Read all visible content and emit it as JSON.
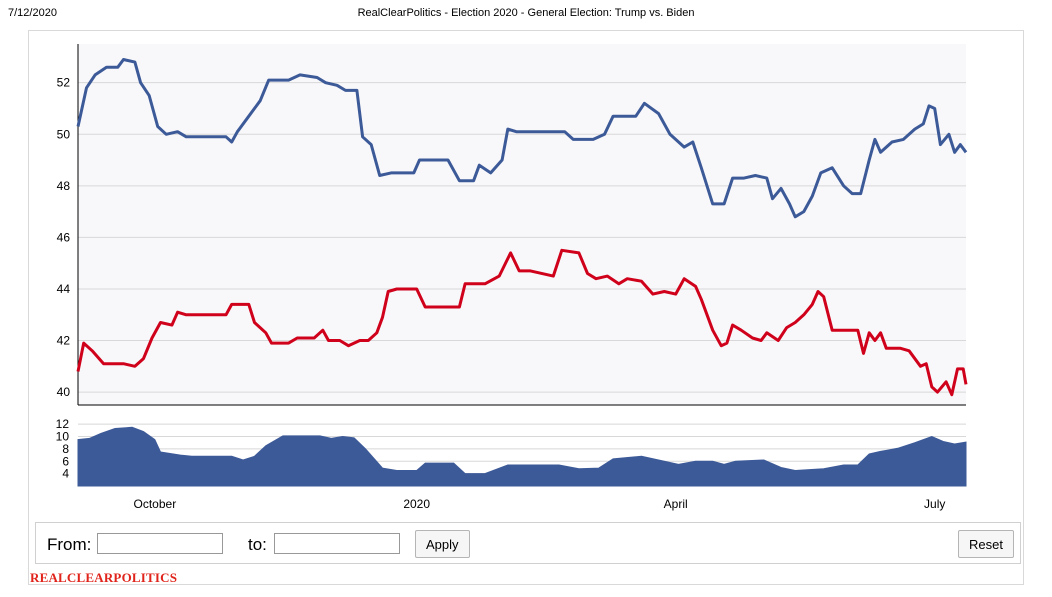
{
  "header": {
    "date": "7/12/2020",
    "title": "RealClearPolitics - Election 2020 - General Election: Trump vs. Biden"
  },
  "controls": {
    "from_label": "From:",
    "from_value": "",
    "to_label": "to:",
    "to_value": "",
    "apply_label": "Apply",
    "reset_label": "Reset"
  },
  "footer": {
    "brand": "REALCLEARPOLITICS"
  },
  "colors": {
    "biden": "#3d5a98",
    "trump": "#d0021b",
    "spread": "#3d5a98",
    "plot_bg": "#f8f8fb",
    "grid": "#d8d8d8"
  },
  "chart_data": [
    {
      "type": "line",
      "title": "",
      "xlabel": "",
      "ylabel": "",
      "ylim": [
        39.5,
        53.5
      ],
      "y_ticks": [
        40,
        42,
        44,
        46,
        48,
        50,
        52
      ],
      "x_ticks": [
        {
          "label": "October",
          "date": "2019-10-01"
        },
        {
          "label": "2020",
          "date": "2020-01-01"
        },
        {
          "label": "April",
          "date": "2020-04-01"
        },
        {
          "label": "July",
          "date": "2020-07-01"
        }
      ],
      "x_range": [
        "2019-09-04",
        "2020-07-12"
      ],
      "grid": true,
      "series": [
        {
          "name": "",
          "color": "#3d5a98",
          "points": [
            [
              "2019-09-04",
              50.3
            ],
            [
              "2019-09-07",
              51.8
            ],
            [
              "2019-09-10",
              52.3
            ],
            [
              "2019-09-14",
              52.6
            ],
            [
              "2019-09-18",
              52.6
            ],
            [
              "2019-09-20",
              52.9
            ],
            [
              "2019-09-24",
              52.8
            ],
            [
              "2019-09-26",
              52.0
            ],
            [
              "2019-09-29",
              51.5
            ],
            [
              "2019-10-02",
              50.3
            ],
            [
              "2019-10-05",
              50.0
            ],
            [
              "2019-10-09",
              50.1
            ],
            [
              "2019-10-12",
              49.9
            ],
            [
              "2019-10-20",
              49.9
            ],
            [
              "2019-10-26",
              49.9
            ],
            [
              "2019-10-28",
              49.7
            ],
            [
              "2019-10-30",
              50.1
            ],
            [
              "2019-11-03",
              50.7
            ],
            [
              "2019-11-07",
              51.3
            ],
            [
              "2019-11-10",
              52.1
            ],
            [
              "2019-11-17",
              52.1
            ],
            [
              "2019-11-21",
              52.3
            ],
            [
              "2019-11-27",
              52.2
            ],
            [
              "2019-11-30",
              52.0
            ],
            [
              "2019-12-04",
              51.9
            ],
            [
              "2019-12-07",
              51.7
            ],
            [
              "2019-12-11",
              51.7
            ],
            [
              "2019-12-13",
              49.9
            ],
            [
              "2019-12-16",
              49.6
            ],
            [
              "2019-12-19",
              48.4
            ],
            [
              "2019-12-23",
              48.5
            ],
            [
              "2019-12-31",
              48.5
            ],
            [
              "2020-01-02",
              49.0
            ],
            [
              "2020-01-12",
              49.0
            ],
            [
              "2020-01-16",
              48.2
            ],
            [
              "2020-01-21",
              48.2
            ],
            [
              "2020-01-23",
              48.8
            ],
            [
              "2020-01-27",
              48.5
            ],
            [
              "2020-01-31",
              49.0
            ],
            [
              "2020-02-02",
              50.2
            ],
            [
              "2020-02-05",
              50.1
            ],
            [
              "2020-02-15",
              50.1
            ],
            [
              "2020-02-22",
              50.1
            ],
            [
              "2020-02-25",
              49.8
            ],
            [
              "2020-02-29",
              49.8
            ],
            [
              "2020-03-03",
              49.8
            ],
            [
              "2020-03-07",
              50.0
            ],
            [
              "2020-03-10",
              50.7
            ],
            [
              "2020-03-18",
              50.7
            ],
            [
              "2020-03-21",
              51.2
            ],
            [
              "2020-03-26",
              50.8
            ],
            [
              "2020-03-30",
              50.0
            ],
            [
              "2020-04-04",
              49.5
            ],
            [
              "2020-04-07",
              49.7
            ],
            [
              "2020-04-10",
              48.7
            ],
            [
              "2020-04-14",
              47.3
            ],
            [
              "2020-04-18",
              47.3
            ],
            [
              "2020-04-21",
              48.3
            ],
            [
              "2020-04-25",
              48.3
            ],
            [
              "2020-04-29",
              48.4
            ],
            [
              "2020-05-03",
              48.3
            ],
            [
              "2020-05-05",
              47.5
            ],
            [
              "2020-05-08",
              47.9
            ],
            [
              "2020-05-11",
              47.3
            ],
            [
              "2020-05-13",
              46.8
            ],
            [
              "2020-05-16",
              47.0
            ],
            [
              "2020-05-19",
              47.6
            ],
            [
              "2020-05-22",
              48.5
            ],
            [
              "2020-05-26",
              48.7
            ],
            [
              "2020-05-30",
              48.0
            ],
            [
              "2020-06-02",
              47.7
            ],
            [
              "2020-06-05",
              47.7
            ],
            [
              "2020-06-08",
              49.0
            ],
            [
              "2020-06-10",
              49.8
            ],
            [
              "2020-06-12",
              49.3
            ],
            [
              "2020-06-16",
              49.7
            ],
            [
              "2020-06-20",
              49.8
            ],
            [
              "2020-06-24",
              50.2
            ],
            [
              "2020-06-27",
              50.4
            ],
            [
              "2020-06-29",
              51.1
            ],
            [
              "2020-07-01",
              51.0
            ],
            [
              "2020-07-03",
              49.6
            ],
            [
              "2020-07-06",
              50.0
            ],
            [
              "2020-07-08",
              49.3
            ],
            [
              "2020-07-10",
              49.6
            ],
            [
              "2020-07-12",
              49.3
            ]
          ]
        },
        {
          "name": "",
          "color": "#d0021b",
          "points": [
            [
              "2019-09-04",
              40.8
            ],
            [
              "2019-09-06",
              41.9
            ],
            [
              "2019-09-09",
              41.6
            ],
            [
              "2019-09-13",
              41.1
            ],
            [
              "2019-09-20",
              41.1
            ],
            [
              "2019-09-24",
              41.0
            ],
            [
              "2019-09-27",
              41.3
            ],
            [
              "2019-09-30",
              42.1
            ],
            [
              "2019-10-03",
              42.7
            ],
            [
              "2019-10-07",
              42.6
            ],
            [
              "2019-10-09",
              43.1
            ],
            [
              "2019-10-12",
              43.0
            ],
            [
              "2019-10-20",
              43.0
            ],
            [
              "2019-10-26",
              43.0
            ],
            [
              "2019-10-28",
              43.4
            ],
            [
              "2019-11-03",
              43.4
            ],
            [
              "2019-11-05",
              42.7
            ],
            [
              "2019-11-09",
              42.3
            ],
            [
              "2019-11-11",
              41.9
            ],
            [
              "2019-11-17",
              41.9
            ],
            [
              "2019-11-20",
              42.1
            ],
            [
              "2019-11-26",
              42.1
            ],
            [
              "2019-11-29",
              42.4
            ],
            [
              "2019-12-01",
              42.0
            ],
            [
              "2019-12-05",
              42.0
            ],
            [
              "2019-12-08",
              41.8
            ],
            [
              "2019-12-12",
              42.0
            ],
            [
              "2019-12-15",
              42.0
            ],
            [
              "2019-12-18",
              42.3
            ],
            [
              "2019-12-20",
              42.9
            ],
            [
              "2019-12-22",
              43.9
            ],
            [
              "2019-12-25",
              44.0
            ],
            [
              "2020-01-01",
              44.0
            ],
            [
              "2020-01-04",
              43.3
            ],
            [
              "2020-01-10",
              43.3
            ],
            [
              "2020-01-16",
              43.3
            ],
            [
              "2020-01-18",
              44.2
            ],
            [
              "2020-01-25",
              44.2
            ],
            [
              "2020-01-30",
              44.5
            ],
            [
              "2020-02-03",
              45.4
            ],
            [
              "2020-02-06",
              44.7
            ],
            [
              "2020-02-10",
              44.7
            ],
            [
              "2020-02-18",
              44.5
            ],
            [
              "2020-02-21",
              45.5
            ],
            [
              "2020-02-27",
              45.4
            ],
            [
              "2020-03-01",
              44.6
            ],
            [
              "2020-03-04",
              44.4
            ],
            [
              "2020-03-08",
              44.5
            ],
            [
              "2020-03-12",
              44.2
            ],
            [
              "2020-03-15",
              44.4
            ],
            [
              "2020-03-20",
              44.3
            ],
            [
              "2020-03-24",
              43.8
            ],
            [
              "2020-03-28",
              43.9
            ],
            [
              "2020-04-01",
              43.8
            ],
            [
              "2020-04-04",
              44.4
            ],
            [
              "2020-04-08",
              44.1
            ],
            [
              "2020-04-10",
              43.6
            ],
            [
              "2020-04-14",
              42.4
            ],
            [
              "2020-04-17",
              41.8
            ],
            [
              "2020-04-19",
              41.9
            ],
            [
              "2020-04-21",
              42.6
            ],
            [
              "2020-04-24",
              42.4
            ],
            [
              "2020-04-28",
              42.1
            ],
            [
              "2020-05-01",
              42.0
            ],
            [
              "2020-05-03",
              42.3
            ],
            [
              "2020-05-07",
              42.0
            ],
            [
              "2020-05-10",
              42.5
            ],
            [
              "2020-05-13",
              42.7
            ],
            [
              "2020-05-16",
              43.0
            ],
            [
              "2020-05-19",
              43.4
            ],
            [
              "2020-05-21",
              43.9
            ],
            [
              "2020-05-23",
              43.7
            ],
            [
              "2020-05-26",
              42.4
            ],
            [
              "2020-05-31",
              42.4
            ],
            [
              "2020-06-04",
              42.4
            ],
            [
              "2020-06-06",
              41.5
            ],
            [
              "2020-06-08",
              42.3
            ],
            [
              "2020-06-10",
              42.0
            ],
            [
              "2020-06-12",
              42.3
            ],
            [
              "2020-06-14",
              41.7
            ],
            [
              "2020-06-19",
              41.7
            ],
            [
              "2020-06-22",
              41.6
            ],
            [
              "2020-06-26",
              41.0
            ],
            [
              "2020-06-28",
              41.1
            ],
            [
              "2020-06-30",
              40.2
            ],
            [
              "2020-07-02",
              40.0
            ],
            [
              "2020-07-05",
              40.4
            ],
            [
              "2020-07-07",
              39.9
            ],
            [
              "2020-07-09",
              40.9
            ],
            [
              "2020-07-11",
              40.9
            ],
            [
              "2020-07-12",
              40.3
            ]
          ]
        }
      ]
    },
    {
      "type": "area",
      "title": "",
      "ylim": [
        2,
        13
      ],
      "y_ticks": [
        4,
        6,
        8,
        10,
        12
      ],
      "series": [
        {
          "name": "",
          "color": "#3d5a98",
          "points": [
            [
              "2019-09-04",
              9.5
            ],
            [
              "2019-09-08",
              9.7
            ],
            [
              "2019-09-12",
              10.5
            ],
            [
              "2019-09-17",
              11.3
            ],
            [
              "2019-09-23",
              11.5
            ],
            [
              "2019-09-27",
              10.8
            ],
            [
              "2019-10-01",
              9.5
            ],
            [
              "2019-10-03",
              7.5
            ],
            [
              "2019-10-10",
              7.0
            ],
            [
              "2019-10-14",
              6.8
            ],
            [
              "2019-10-28",
              6.8
            ],
            [
              "2019-11-01",
              6.2
            ],
            [
              "2019-11-05",
              6.8
            ],
            [
              "2019-11-09",
              8.5
            ],
            [
              "2019-11-15",
              10.1
            ],
            [
              "2019-11-22",
              10.1
            ],
            [
              "2019-11-28",
              10.1
            ],
            [
              "2019-12-02",
              9.7
            ],
            [
              "2019-12-06",
              10.0
            ],
            [
              "2019-12-10",
              9.8
            ],
            [
              "2019-12-14",
              8.0
            ],
            [
              "2019-12-20",
              4.9
            ],
            [
              "2019-12-25",
              4.5
            ],
            [
              "2020-01-01",
              4.5
            ],
            [
              "2020-01-04",
              5.7
            ],
            [
              "2020-01-14",
              5.7
            ],
            [
              "2020-01-18",
              4.0
            ],
            [
              "2020-01-25",
              4.0
            ],
            [
              "2020-02-02",
              5.4
            ],
            [
              "2020-02-20",
              5.4
            ],
            [
              "2020-02-27",
              4.8
            ],
            [
              "2020-03-05",
              4.9
            ],
            [
              "2020-03-10",
              6.4
            ],
            [
              "2020-03-20",
              6.8
            ],
            [
              "2020-03-28",
              6.0
            ],
            [
              "2020-04-02",
              5.5
            ],
            [
              "2020-04-08",
              6.0
            ],
            [
              "2020-04-14",
              6.0
            ],
            [
              "2020-04-18",
              5.5
            ],
            [
              "2020-04-22",
              6.0
            ],
            [
              "2020-05-02",
              6.2
            ],
            [
              "2020-05-08",
              5.0
            ],
            [
              "2020-05-13",
              4.5
            ],
            [
              "2020-05-23",
              4.8
            ],
            [
              "2020-05-30",
              5.4
            ],
            [
              "2020-06-04",
              5.4
            ],
            [
              "2020-06-08",
              7.2
            ],
            [
              "2020-06-12",
              7.6
            ],
            [
              "2020-06-18",
              8.1
            ],
            [
              "2020-06-24",
              9.0
            ],
            [
              "2020-06-30",
              10.0
            ],
            [
              "2020-07-04",
              9.2
            ],
            [
              "2020-07-08",
              8.8
            ],
            [
              "2020-07-12",
              9.1
            ]
          ]
        }
      ]
    }
  ]
}
